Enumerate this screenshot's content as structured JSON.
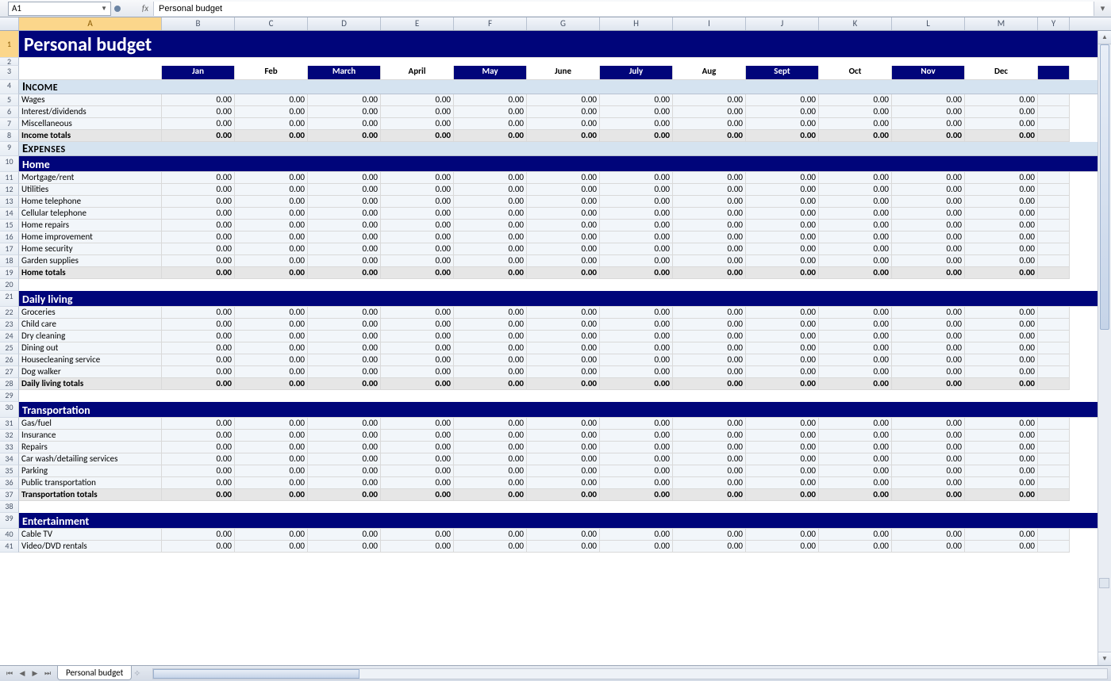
{
  "nameBox": "A1",
  "fx": "fx",
  "formulaValue": "Personal budget",
  "columns": [
    "A",
    "B",
    "C",
    "D",
    "E",
    "F",
    "G",
    "H",
    "I",
    "J",
    "K",
    "L",
    "M"
  ],
  "lastColLetter": "Y",
  "activeCol": "A",
  "activeRow": 1,
  "title": "Personal budget",
  "months": [
    {
      "label": "Jan",
      "blue": true
    },
    {
      "label": "Feb",
      "blue": false
    },
    {
      "label": "March",
      "blue": true
    },
    {
      "label": "April",
      "blue": false
    },
    {
      "label": "May",
      "blue": true
    },
    {
      "label": "June",
      "blue": false
    },
    {
      "label": "July",
      "blue": true
    },
    {
      "label": "Aug",
      "blue": false
    },
    {
      "label": "Sept",
      "blue": true
    },
    {
      "label": "Oct",
      "blue": false
    },
    {
      "label": "Nov",
      "blue": true
    },
    {
      "label": "Dec",
      "blue": false
    }
  ],
  "sections": {
    "income": {
      "header": "Income",
      "rows": [
        {
          "label": "Wages",
          "values": [
            "0.00",
            "0.00",
            "0.00",
            "0.00",
            "0.00",
            "0.00",
            "0.00",
            "0.00",
            "0.00",
            "0.00",
            "0.00",
            "0.00"
          ]
        },
        {
          "label": "Interest/dividends",
          "values": [
            "0.00",
            "0.00",
            "0.00",
            "0.00",
            "0.00",
            "0.00",
            "0.00",
            "0.00",
            "0.00",
            "0.00",
            "0.00",
            "0.00"
          ]
        },
        {
          "label": "Miscellaneous",
          "values": [
            "0.00",
            "0.00",
            "0.00",
            "0.00",
            "0.00",
            "0.00",
            "0.00",
            "0.00",
            "0.00",
            "0.00",
            "0.00",
            "0.00"
          ]
        }
      ],
      "total": {
        "label": "Income totals",
        "values": [
          "0.00",
          "0.00",
          "0.00",
          "0.00",
          "0.00",
          "0.00",
          "0.00",
          "0.00",
          "0.00",
          "0.00",
          "0.00",
          "0.00"
        ]
      }
    },
    "expenses": {
      "header": "Expenses"
    },
    "home": {
      "header": "Home",
      "rows": [
        {
          "label": "Mortgage/rent",
          "values": [
            "0.00",
            "0.00",
            "0.00",
            "0.00",
            "0.00",
            "0.00",
            "0.00",
            "0.00",
            "0.00",
            "0.00",
            "0.00",
            "0.00"
          ]
        },
        {
          "label": "Utilities",
          "values": [
            "0.00",
            "0.00",
            "0.00",
            "0.00",
            "0.00",
            "0.00",
            "0.00",
            "0.00",
            "0.00",
            "0.00",
            "0.00",
            "0.00"
          ]
        },
        {
          "label": "Home telephone",
          "values": [
            "0.00",
            "0.00",
            "0.00",
            "0.00",
            "0.00",
            "0.00",
            "0.00",
            "0.00",
            "0.00",
            "0.00",
            "0.00",
            "0.00"
          ]
        },
        {
          "label": "Cellular telephone",
          "values": [
            "0.00",
            "0.00",
            "0.00",
            "0.00",
            "0.00",
            "0.00",
            "0.00",
            "0.00",
            "0.00",
            "0.00",
            "0.00",
            "0.00"
          ]
        },
        {
          "label": "Home repairs",
          "values": [
            "0.00",
            "0.00",
            "0.00",
            "0.00",
            "0.00",
            "0.00",
            "0.00",
            "0.00",
            "0.00",
            "0.00",
            "0.00",
            "0.00"
          ]
        },
        {
          "label": "Home improvement",
          "values": [
            "0.00",
            "0.00",
            "0.00",
            "0.00",
            "0.00",
            "0.00",
            "0.00",
            "0.00",
            "0.00",
            "0.00",
            "0.00",
            "0.00"
          ]
        },
        {
          "label": "Home security",
          "values": [
            "0.00",
            "0.00",
            "0.00",
            "0.00",
            "0.00",
            "0.00",
            "0.00",
            "0.00",
            "0.00",
            "0.00",
            "0.00",
            "0.00"
          ]
        },
        {
          "label": "Garden supplies",
          "values": [
            "0.00",
            "0.00",
            "0.00",
            "0.00",
            "0.00",
            "0.00",
            "0.00",
            "0.00",
            "0.00",
            "0.00",
            "0.00",
            "0.00"
          ]
        }
      ],
      "total": {
        "label": "Home totals",
        "values": [
          "0.00",
          "0.00",
          "0.00",
          "0.00",
          "0.00",
          "0.00",
          "0.00",
          "0.00",
          "0.00",
          "0.00",
          "0.00",
          "0.00"
        ]
      }
    },
    "daily": {
      "header": "Daily living",
      "rows": [
        {
          "label": "Groceries",
          "values": [
            "0.00",
            "0.00",
            "0.00",
            "0.00",
            "0.00",
            "0.00",
            "0.00",
            "0.00",
            "0.00",
            "0.00",
            "0.00",
            "0.00"
          ]
        },
        {
          "label": "Child care",
          "values": [
            "0.00",
            "0.00",
            "0.00",
            "0.00",
            "0.00",
            "0.00",
            "0.00",
            "0.00",
            "0.00",
            "0.00",
            "0.00",
            "0.00"
          ]
        },
        {
          "label": "Dry cleaning",
          "values": [
            "0.00",
            "0.00",
            "0.00",
            "0.00",
            "0.00",
            "0.00",
            "0.00",
            "0.00",
            "0.00",
            "0.00",
            "0.00",
            "0.00"
          ]
        },
        {
          "label": "Dining out",
          "values": [
            "0.00",
            "0.00",
            "0.00",
            "0.00",
            "0.00",
            "0.00",
            "0.00",
            "0.00",
            "0.00",
            "0.00",
            "0.00",
            "0.00"
          ]
        },
        {
          "label": "Housecleaning service",
          "values": [
            "0.00",
            "0.00",
            "0.00",
            "0.00",
            "0.00",
            "0.00",
            "0.00",
            "0.00",
            "0.00",
            "0.00",
            "0.00",
            "0.00"
          ]
        },
        {
          "label": "Dog walker",
          "values": [
            "0.00",
            "0.00",
            "0.00",
            "0.00",
            "0.00",
            "0.00",
            "0.00",
            "0.00",
            "0.00",
            "0.00",
            "0.00",
            "0.00"
          ]
        }
      ],
      "total": {
        "label": "Daily living totals",
        "values": [
          "0.00",
          "0.00",
          "0.00",
          "0.00",
          "0.00",
          "0.00",
          "0.00",
          "0.00",
          "0.00",
          "0.00",
          "0.00",
          "0.00"
        ]
      }
    },
    "transport": {
      "header": "Transportation",
      "rows": [
        {
          "label": "Gas/fuel",
          "values": [
            "0.00",
            "0.00",
            "0.00",
            "0.00",
            "0.00",
            "0.00",
            "0.00",
            "0.00",
            "0.00",
            "0.00",
            "0.00",
            "0.00"
          ]
        },
        {
          "label": "Insurance",
          "values": [
            "0.00",
            "0.00",
            "0.00",
            "0.00",
            "0.00",
            "0.00",
            "0.00",
            "0.00",
            "0.00",
            "0.00",
            "0.00",
            "0.00"
          ]
        },
        {
          "label": "Repairs",
          "values": [
            "0.00",
            "0.00",
            "0.00",
            "0.00",
            "0.00",
            "0.00",
            "0.00",
            "0.00",
            "0.00",
            "0.00",
            "0.00",
            "0.00"
          ]
        },
        {
          "label": "Car wash/detailing services",
          "values": [
            "0.00",
            "0.00",
            "0.00",
            "0.00",
            "0.00",
            "0.00",
            "0.00",
            "0.00",
            "0.00",
            "0.00",
            "0.00",
            "0.00"
          ]
        },
        {
          "label": "Parking",
          "values": [
            "0.00",
            "0.00",
            "0.00",
            "0.00",
            "0.00",
            "0.00",
            "0.00",
            "0.00",
            "0.00",
            "0.00",
            "0.00",
            "0.00"
          ]
        },
        {
          "label": "Public transportation",
          "values": [
            "0.00",
            "0.00",
            "0.00",
            "0.00",
            "0.00",
            "0.00",
            "0.00",
            "0.00",
            "0.00",
            "0.00",
            "0.00",
            "0.00"
          ]
        }
      ],
      "total": {
        "label": "Transportation totals",
        "values": [
          "0.00",
          "0.00",
          "0.00",
          "0.00",
          "0.00",
          "0.00",
          "0.00",
          "0.00",
          "0.00",
          "0.00",
          "0.00",
          "0.00"
        ]
      }
    },
    "entertainment": {
      "header": "Entertainment",
      "rows": [
        {
          "label": "Cable TV",
          "values": [
            "0.00",
            "0.00",
            "0.00",
            "0.00",
            "0.00",
            "0.00",
            "0.00",
            "0.00",
            "0.00",
            "0.00",
            "0.00",
            "0.00"
          ]
        },
        {
          "label": "Video/DVD rentals",
          "values": [
            "0.00",
            "0.00",
            "0.00",
            "0.00",
            "0.00",
            "0.00",
            "0.00",
            "0.00",
            "0.00",
            "0.00",
            "0.00",
            "0.00"
          ]
        }
      ]
    }
  },
  "sheetTab": "Personal budget",
  "colors": {
    "navy": "#00057a",
    "lightBlue": "#d5e3f0",
    "itemBg": "#f2f6fa",
    "totalBg": "#e6e6e6"
  },
  "vscroll": {
    "thumbTop": 17,
    "thumbHeight": 360,
    "resizeTop": 690
  },
  "hscroll": {
    "thumbLeft": 0,
    "thumbWidth": 260
  }
}
